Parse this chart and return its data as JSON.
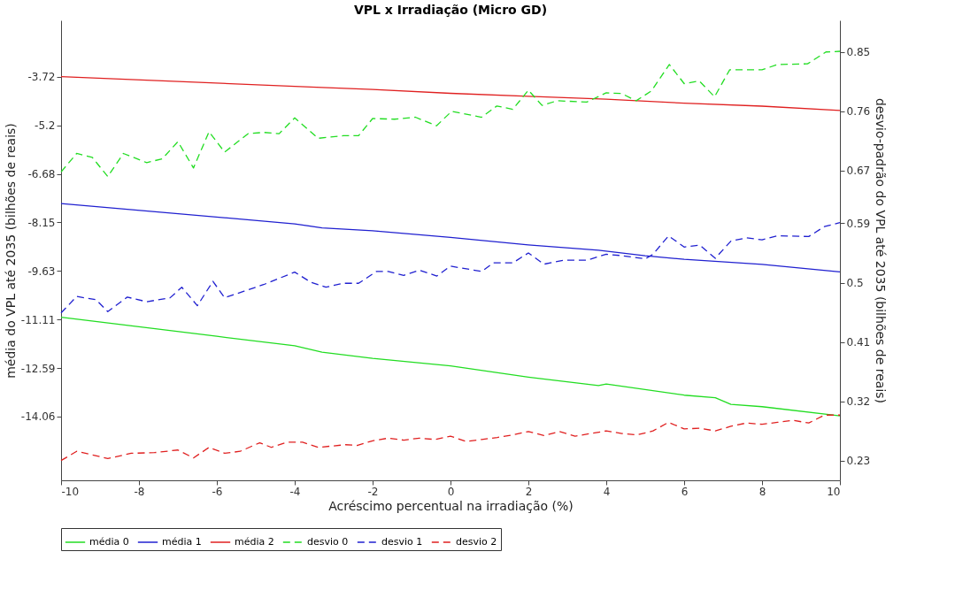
{
  "chart_data": {
    "type": "line",
    "title": "VPL x Irradiação (Micro GD)",
    "xlabel": "Acréscimo percentual na irradiação (%)",
    "ylabel": "média do VPL até 2035 (bilhões de reais)",
    "y2label": "desvio-padrão do VPL até 2035 (bilhões de reais)",
    "xlim": [
      -10,
      10
    ],
    "xticks": [
      -10,
      -8,
      -6,
      -4,
      -2,
      0,
      2,
      4,
      6,
      8,
      10
    ],
    "ylim": [
      -16.0,
      -2.01
    ],
    "yticks": [
      -14.06,
      -12.59,
      -11.11,
      -9.63,
      -8.15,
      -6.68,
      -5.2,
      -3.72
    ],
    "y2lim": [
      0.2,
      0.898
    ],
    "y2ticks": [
      0.23,
      0.32,
      0.41,
      0.5,
      0.59,
      0.67,
      0.76,
      0.85
    ],
    "grid": false,
    "legend": "bottom",
    "marker": "none",
    "series": [
      {
        "name": "média 0",
        "color": "#22dd22",
        "line_style": "solid",
        "x": [
          -10,
          -8,
          -6,
          -4,
          -3.3,
          -2,
          0,
          2,
          3.8,
          4,
          6,
          6.8,
          7.2,
          8,
          10
        ],
        "values": [
          -11.04,
          -11.33,
          -11.62,
          -11.91,
          -12.1,
          -12.29,
          -12.52,
          -12.86,
          -13.12,
          -13.07,
          -13.41,
          -13.49,
          -13.69,
          -13.76,
          -14.04
        ]
      },
      {
        "name": "média 1",
        "color": "#2020d0",
        "line_style": "solid",
        "x": [
          -10,
          -4,
          -3.3,
          -2,
          0,
          2,
          3.8,
          5,
          6,
          8,
          10
        ],
        "values": [
          -7.58,
          -8.2,
          -8.32,
          -8.41,
          -8.61,
          -8.84,
          -9.0,
          -9.17,
          -9.28,
          -9.43,
          -9.66
        ]
      },
      {
        "name": "média 2",
        "color": "#e02020",
        "line_style": "solid",
        "x": [
          -10,
          -4,
          -3.3,
          -2,
          0,
          2,
          4,
          6,
          8,
          10
        ],
        "values": [
          -3.72,
          -4.02,
          -4.05,
          -4.11,
          -4.23,
          -4.32,
          -4.41,
          -4.53,
          -4.62,
          -4.75
        ]
      },
      {
        "name": "desvio 0",
        "color": "#22dd22",
        "line_style": "dashed",
        "axis": "y2",
        "x": [
          -10,
          -9.6,
          -9.2,
          -8.8,
          -8.4,
          -7.8,
          -7.4,
          -7.0,
          -6.6,
          -6.2,
          -5.8,
          -5.2,
          -4.8,
          -4.4,
          -4.0,
          -3.4,
          -2.75,
          -2.36,
          -2.0,
          -1.44,
          -0.9,
          -0.36,
          0.03,
          0.8,
          1.19,
          1.6,
          2.0,
          2.35,
          2.74,
          3.5,
          4.0,
          4.39,
          4.77,
          5.16,
          5.62,
          6.0,
          6.39,
          6.78,
          7.17,
          8.0,
          8.4,
          9.17,
          9.64,
          10
        ],
        "values": [
          0.668,
          0.696,
          0.69,
          0.661,
          0.696,
          0.682,
          0.688,
          0.714,
          0.674,
          0.729,
          0.698,
          0.726,
          0.728,
          0.726,
          0.75,
          0.719,
          0.723,
          0.723,
          0.749,
          0.748,
          0.751,
          0.738,
          0.76,
          0.751,
          0.768,
          0.763,
          0.792,
          0.769,
          0.776,
          0.774,
          0.788,
          0.787,
          0.776,
          0.791,
          0.831,
          0.802,
          0.806,
          0.782,
          0.823,
          0.823,
          0.831,
          0.832,
          0.85,
          0.851
        ]
      },
      {
        "name": "desvio 1",
        "color": "#2020d0",
        "line_style": "dashed",
        "axis": "y2",
        "x": [
          -10,
          -9.6,
          -9.1,
          -8.8,
          -8.3,
          -7.8,
          -7.2,
          -6.9,
          -6.5,
          -6.1,
          -5.8,
          -5.3,
          -4.8,
          -4.0,
          -3.6,
          -3.2,
          -2.75,
          -2.36,
          -1.9,
          -1.6,
          -1.2,
          -0.8,
          -0.35,
          0.0,
          0.8,
          1.1,
          1.6,
          2.0,
          2.4,
          2.9,
          3.5,
          4.0,
          4.4,
          5.0,
          5.2,
          5.6,
          6.0,
          6.4,
          6.8,
          7.2,
          7.6,
          8.0,
          8.4,
          9.2,
          9.6,
          10
        ],
        "values": [
          0.454,
          0.479,
          0.474,
          0.456,
          0.478,
          0.471,
          0.477,
          0.493,
          0.465,
          0.502,
          0.477,
          0.487,
          0.497,
          0.516,
          0.501,
          0.493,
          0.499,
          0.499,
          0.517,
          0.517,
          0.511,
          0.519,
          0.51,
          0.525,
          0.517,
          0.53,
          0.53,
          0.545,
          0.528,
          0.534,
          0.534,
          0.543,
          0.541,
          0.536,
          0.543,
          0.571,
          0.554,
          0.557,
          0.537,
          0.563,
          0.568,
          0.565,
          0.571,
          0.57,
          0.585,
          0.591
        ]
      },
      {
        "name": "desvio 2",
        "color": "#e02020",
        "line_style": "dashed",
        "axis": "y2",
        "x": [
          -10,
          -9.6,
          -9.0,
          -8.8,
          -8.2,
          -7.6,
          -7.0,
          -6.6,
          -6.2,
          -5.8,
          -5.4,
          -4.9,
          -4.6,
          -4.2,
          -3.8,
          -3.4,
          -2.7,
          -2.4,
          -2.0,
          -1.6,
          -1.2,
          -0.8,
          -0.4,
          0.0,
          0.4,
          0.8,
          1.2,
          1.6,
          2.0,
          2.4,
          2.8,
          3.2,
          4.0,
          4.4,
          4.8,
          5.2,
          5.6,
          6.0,
          6.4,
          6.8,
          7.2,
          7.6,
          8.0,
          8.4,
          8.8,
          9.2,
          9.6,
          10
        ],
        "values": [
          0.23,
          0.244,
          0.236,
          0.233,
          0.241,
          0.242,
          0.246,
          0.234,
          0.25,
          0.241,
          0.244,
          0.257,
          0.25,
          0.258,
          0.258,
          0.25,
          0.254,
          0.253,
          0.26,
          0.264,
          0.261,
          0.264,
          0.262,
          0.267,
          0.259,
          0.262,
          0.265,
          0.269,
          0.274,
          0.268,
          0.274,
          0.267,
          0.275,
          0.271,
          0.269,
          0.275,
          0.288,
          0.278,
          0.279,
          0.275,
          0.282,
          0.287,
          0.285,
          0.288,
          0.291,
          0.287,
          0.299,
          0.299
        ]
      }
    ]
  }
}
